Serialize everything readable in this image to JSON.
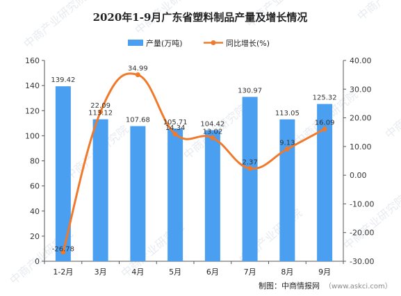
{
  "chart_data": {
    "type": "bar+line",
    "title": "2020年1-9月广东省塑料制品产量及增长情况",
    "categories": [
      "1-2月",
      "3月",
      "4月",
      "5月",
      "6月",
      "7月",
      "8月",
      "9月"
    ],
    "series": [
      {
        "name": "产量(万吨)",
        "type": "bar",
        "axis": "left",
        "values": [
          139.42,
          113.12,
          107.68,
          105.71,
          104.42,
          130.97,
          113.05,
          125.32
        ],
        "labels": [
          "139.42",
          "113.12",
          "107.68",
          "105.71",
          "104.42",
          "130.97",
          "113.05",
          "125.32"
        ]
      },
      {
        "name": "同比增长(%)",
        "type": "line",
        "axis": "right",
        "values": [
          -26.78,
          22.09,
          34.99,
          14.34,
          13.02,
          2.37,
          9.13,
          16.09
        ],
        "labels": [
          "-26.78",
          "22.09",
          "34.99",
          "14.34",
          "13.02",
          "2.37",
          "9.13",
          "16.09"
        ]
      }
    ],
    "y_left": {
      "min": 0,
      "max": 160,
      "step": 20,
      "ticks": [
        "0",
        "20",
        "40",
        "60",
        "80",
        "100",
        "120",
        "140",
        "160"
      ]
    },
    "y_right": {
      "min": -30,
      "max": 40,
      "step": 10,
      "ticks": [
        "-30.00",
        "-20.00",
        "-10.00",
        "0.00",
        "10.00",
        "20.00",
        "30.00",
        "40.00"
      ]
    },
    "legend_position": "top-center",
    "grid": false,
    "colors": {
      "bar": "#4a9ff0",
      "line": "#f07a2c",
      "axis": "#555555"
    }
  },
  "source_credit": "制图：中商情报网",
  "source_url": "（www.askci.com）",
  "watermark": "中商产业研究院"
}
